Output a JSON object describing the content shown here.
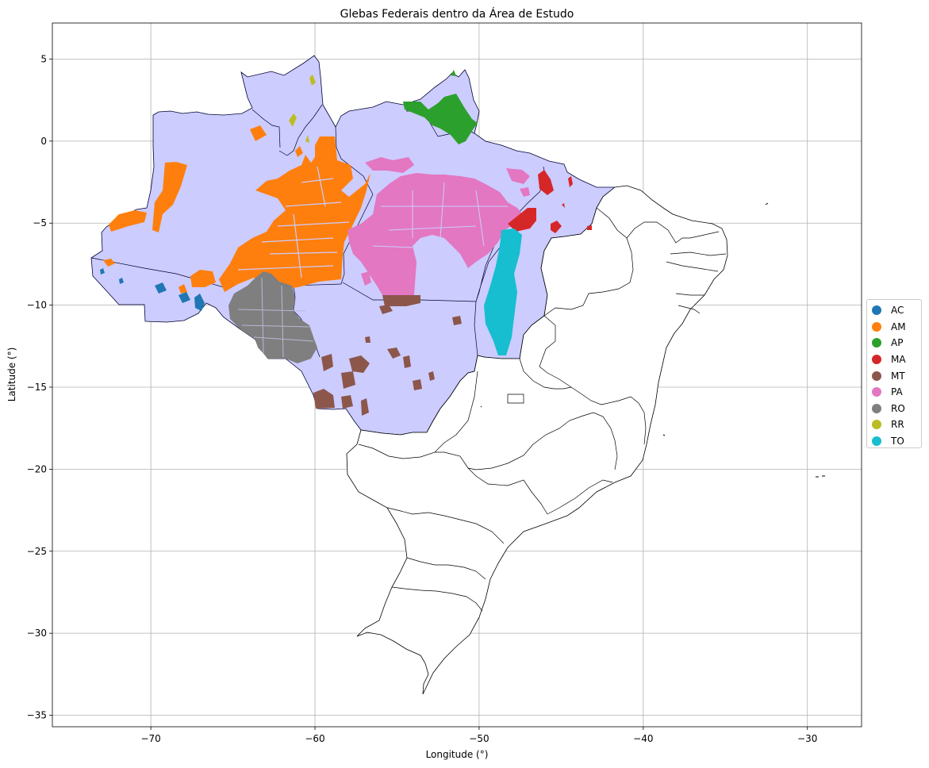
{
  "title": "Glebas Federais dentro da Área de Estudo",
  "xlabel": "Longitude (°)",
  "ylabel": "Latitude (°)",
  "chart_data": {
    "type": "map",
    "title": "Glebas Federais dentro da Área de Estudo",
    "xlabel": "Longitude (°)",
    "ylabel": "Latitude (°)",
    "xlim": [
      -76,
      -26.7
    ],
    "ylim": [
      -35.7,
      7.2
    ],
    "x_ticks": [
      -70,
      -60,
      -50,
      -40,
      -30
    ],
    "y_ticks": [
      5,
      0,
      -5,
      -10,
      -15,
      -20,
      -25,
      -30,
      -35
    ],
    "x_tick_labels": [
      "−70",
      "−60",
      "−50",
      "−40",
      "−30"
    ],
    "y_tick_labels": [
      "5",
      "0",
      "−5",
      "−10",
      "−15",
      "−20",
      "−25",
      "−30",
      "−35"
    ],
    "grid": true,
    "legend_position": "outside-right",
    "study_area_color": "#ccccff",
    "legend": [
      {
        "name": "AC",
        "color": "#1f77b4"
      },
      {
        "name": "AM",
        "color": "#ff7f0e"
      },
      {
        "name": "AP",
        "color": "#2ca02c"
      },
      {
        "name": "MA",
        "color": "#d62728"
      },
      {
        "name": "MT",
        "color": "#8c564b"
      },
      {
        "name": "PA",
        "color": "#e377c2"
      },
      {
        "name": "RO",
        "color": "#7f7f7f"
      },
      {
        "name": "RR",
        "color": "#bcbd22"
      },
      {
        "name": "TO",
        "color": "#17becf"
      }
    ]
  }
}
